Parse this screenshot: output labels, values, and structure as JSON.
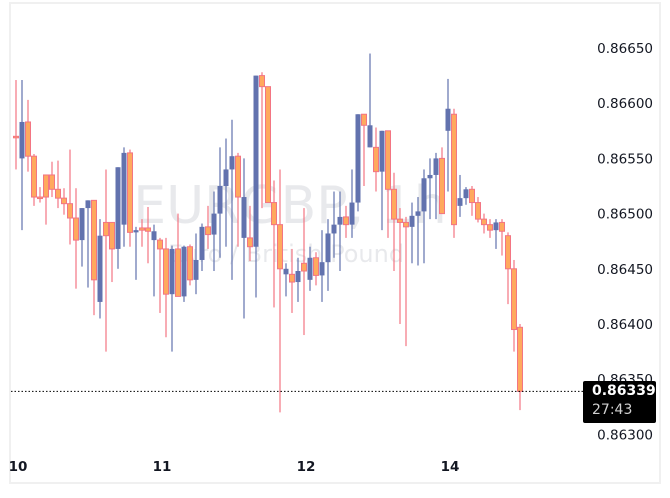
{
  "chart_data": {
    "type": "candlestick",
    "title": "EURGBP, 1h",
    "subtitle": "Euro / British Pound",
    "symbol": "EURGBP",
    "timeframe": "1h",
    "xlabel": "",
    "ylabel": "",
    "ylim": [
      0.86285,
      0.8669
    ],
    "grid": false,
    "y_ticks": [
      "0.86650",
      "0.86600",
      "0.86550",
      "0.86500",
      "0.86450",
      "0.86400",
      "0.86350",
      "0.86300"
    ],
    "x_ticks": [
      {
        "label": "10",
        "candle_index": 0
      },
      {
        "label": "11",
        "candle_index": 24
      },
      {
        "label": "12",
        "candle_index": 48
      },
      {
        "label": "14",
        "candle_index": 72
      }
    ],
    "last_price": "0.86339",
    "countdown": "27:43",
    "colors": {
      "up_body": "#6272ae",
      "up_wick": "#6272ae",
      "down_body": "#ffa95e",
      "down_border": "#f37583",
      "down_wick": "#f37583",
      "last_price_line": "#000000",
      "price_tag_bg": "#000000",
      "watermark": "#d9dbe0",
      "frame": "#f0f0f0"
    },
    "candles": [
      {
        "o": 0.8657,
        "h": 0.86621,
        "l": 0.8654,
        "c": 0.8657,
        "d": -1
      },
      {
        "o": 0.8655,
        "h": 0.86621,
        "l": 0.86485,
        "c": 0.86583,
        "d": 1
      },
      {
        "o": 0.86583,
        "h": 0.86603,
        "l": 0.86538,
        "c": 0.86552,
        "d": -1
      },
      {
        "o": 0.86552,
        "h": 0.86554,
        "l": 0.86507,
        "c": 0.86515,
        "d": -1
      },
      {
        "o": 0.86515,
        "h": 0.86524,
        "l": 0.8651,
        "c": 0.86515,
        "d": -1
      },
      {
        "o": 0.86515,
        "h": 0.8653,
        "l": 0.8649,
        "c": 0.86535,
        "d": -1
      },
      {
        "o": 0.86535,
        "h": 0.86547,
        "l": 0.86515,
        "c": 0.86522,
        "d": -1
      },
      {
        "o": 0.86522,
        "h": 0.86548,
        "l": 0.86505,
        "c": 0.86514,
        "d": -1
      },
      {
        "o": 0.86514,
        "h": 0.86523,
        "l": 0.86499,
        "c": 0.86509,
        "d": -1
      },
      {
        "o": 0.86509,
        "h": 0.86558,
        "l": 0.86472,
        "c": 0.86496,
        "d": -1
      },
      {
        "o": 0.86496,
        "h": 0.86523,
        "l": 0.86432,
        "c": 0.86476,
        "d": -1
      },
      {
        "o": 0.86476,
        "h": 0.86496,
        "l": 0.86452,
        "c": 0.86505,
        "d": 1
      },
      {
        "o": 0.86505,
        "h": 0.86512,
        "l": 0.86433,
        "c": 0.86512,
        "d": 1
      },
      {
        "o": 0.86512,
        "h": 0.86485,
        "l": 0.86408,
        "c": 0.8644,
        "d": -1
      },
      {
        "o": 0.8642,
        "h": 0.86495,
        "l": 0.86405,
        "c": 0.8648,
        "d": 1
      },
      {
        "o": 0.8648,
        "h": 0.8654,
        "l": 0.86375,
        "c": 0.86492,
        "d": -1
      },
      {
        "o": 0.86492,
        "h": 0.86492,
        "l": 0.86438,
        "c": 0.86468,
        "d": -1
      },
      {
        "o": 0.86468,
        "h": 0.86523,
        "l": 0.8645,
        "c": 0.86542,
        "d": 1
      },
      {
        "o": 0.8649,
        "h": 0.8656,
        "l": 0.8647,
        "c": 0.86555,
        "d": 1
      },
      {
        "o": 0.86555,
        "h": 0.86558,
        "l": 0.8647,
        "c": 0.86483,
        "d": -1
      },
      {
        "o": 0.86483,
        "h": 0.86488,
        "l": 0.8644,
        "c": 0.86485,
        "d": 1
      },
      {
        "o": 0.86485,
        "h": 0.86495,
        "l": 0.8647,
        "c": 0.86487,
        "d": -1
      },
      {
        "o": 0.86487,
        "h": 0.86506,
        "l": 0.86455,
        "c": 0.86484,
        "d": -1
      },
      {
        "o": 0.86484,
        "h": 0.8649,
        "l": 0.86425,
        "c": 0.86476,
        "d": 1
      },
      {
        "o": 0.86476,
        "h": 0.86478,
        "l": 0.8641,
        "c": 0.86468,
        "d": -1
      },
      {
        "o": 0.86468,
        "h": 0.86478,
        "l": 0.86388,
        "c": 0.86427,
        "d": -1
      },
      {
        "o": 0.86427,
        "h": 0.86471,
        "l": 0.86375,
        "c": 0.86468,
        "d": 1
      },
      {
        "o": 0.86468,
        "h": 0.865,
        "l": 0.8643,
        "c": 0.86425,
        "d": -1
      },
      {
        "o": 0.86425,
        "h": 0.86471,
        "l": 0.8642,
        "c": 0.8647,
        "d": 1
      },
      {
        "o": 0.8647,
        "h": 0.86472,
        "l": 0.86435,
        "c": 0.8644,
        "d": -1
      },
      {
        "o": 0.8644,
        "h": 0.86482,
        "l": 0.86427,
        "c": 0.86458,
        "d": 1
      },
      {
        "o": 0.86458,
        "h": 0.86491,
        "l": 0.86448,
        "c": 0.86488,
        "d": 1
      },
      {
        "o": 0.86488,
        "h": 0.86507,
        "l": 0.86468,
        "c": 0.86481,
        "d": -1
      },
      {
        "o": 0.86481,
        "h": 0.8652,
        "l": 0.86448,
        "c": 0.865,
        "d": 1
      },
      {
        "o": 0.865,
        "h": 0.8656,
        "l": 0.8646,
        "c": 0.86525,
        "d": 1
      },
      {
        "o": 0.86525,
        "h": 0.86568,
        "l": 0.8647,
        "c": 0.8654,
        "d": 1
      },
      {
        "o": 0.8654,
        "h": 0.86585,
        "l": 0.8644,
        "c": 0.86552,
        "d": 1
      },
      {
        "o": 0.86552,
        "h": 0.86555,
        "l": 0.8647,
        "c": 0.86515,
        "d": -1
      },
      {
        "o": 0.86515,
        "h": 0.8655,
        "l": 0.86405,
        "c": 0.86478,
        "d": 1
      },
      {
        "o": 0.86478,
        "h": 0.86507,
        "l": 0.86457,
        "c": 0.8647,
        "d": -1
      },
      {
        "o": 0.8647,
        "h": 0.86598,
        "l": 0.86424,
        "c": 0.86625,
        "d": 1
      },
      {
        "o": 0.86625,
        "h": 0.86628,
        "l": 0.86505,
        "c": 0.86615,
        "d": -1
      },
      {
        "o": 0.86615,
        "h": 0.86615,
        "l": 0.8651,
        "c": 0.8651,
        "d": -1
      },
      {
        "o": 0.8651,
        "h": 0.8653,
        "l": 0.86415,
        "c": 0.8649,
        "d": -1
      },
      {
        "o": 0.8649,
        "h": 0.8654,
        "l": 0.8632,
        "c": 0.8645,
        "d": -1
      },
      {
        "o": 0.8645,
        "h": 0.86455,
        "l": 0.86425,
        "c": 0.86445,
        "d": 1
      },
      {
        "o": 0.86445,
        "h": 0.86468,
        "l": 0.8641,
        "c": 0.86438,
        "d": -1
      },
      {
        "o": 0.86438,
        "h": 0.8646,
        "l": 0.8642,
        "c": 0.86448,
        "d": 1
      },
      {
        "o": 0.86448,
        "h": 0.86505,
        "l": 0.8639,
        "c": 0.86455,
        "d": -1
      },
      {
        "o": 0.8644,
        "h": 0.8647,
        "l": 0.8643,
        "c": 0.8646,
        "d": 1
      },
      {
        "o": 0.8646,
        "h": 0.86465,
        "l": 0.86435,
        "c": 0.86444,
        "d": -1
      },
      {
        "o": 0.86444,
        "h": 0.86485,
        "l": 0.8642,
        "c": 0.86456,
        "d": 1
      },
      {
        "o": 0.86456,
        "h": 0.86495,
        "l": 0.8643,
        "c": 0.86482,
        "d": 1
      },
      {
        "o": 0.86482,
        "h": 0.8652,
        "l": 0.8646,
        "c": 0.8649,
        "d": 1
      },
      {
        "o": 0.8649,
        "h": 0.8652,
        "l": 0.86448,
        "c": 0.86497,
        "d": 1
      },
      {
        "o": 0.86497,
        "h": 0.86507,
        "l": 0.86478,
        "c": 0.8649,
        "d": -1
      },
      {
        "o": 0.8649,
        "h": 0.8654,
        "l": 0.86478,
        "c": 0.8651,
        "d": 1
      },
      {
        "o": 0.8651,
        "h": 0.86568,
        "l": 0.86502,
        "c": 0.8659,
        "d": 1
      },
      {
        "o": 0.8659,
        "h": 0.8659,
        "l": 0.86525,
        "c": 0.8658,
        "d": -1
      },
      {
        "o": 0.8658,
        "h": 0.86645,
        "l": 0.86568,
        "c": 0.8656,
        "d": 1
      },
      {
        "o": 0.8656,
        "h": 0.86578,
        "l": 0.8652,
        "c": 0.86538,
        "d": -1
      },
      {
        "o": 0.86538,
        "h": 0.8656,
        "l": 0.86485,
        "c": 0.86575,
        "d": 1
      },
      {
        "o": 0.86575,
        "h": 0.86568,
        "l": 0.86478,
        "c": 0.86522,
        "d": -1
      },
      {
        "o": 0.86522,
        "h": 0.86537,
        "l": 0.86448,
        "c": 0.86495,
        "d": -1
      },
      {
        "o": 0.86495,
        "h": 0.86505,
        "l": 0.864,
        "c": 0.86492,
        "d": -1
      },
      {
        "o": 0.86492,
        "h": 0.86497,
        "l": 0.8638,
        "c": 0.86488,
        "d": -1
      },
      {
        "o": 0.86488,
        "h": 0.8651,
        "l": 0.86455,
        "c": 0.86498,
        "d": 1
      },
      {
        "o": 0.86498,
        "h": 0.86515,
        "l": 0.86453,
        "c": 0.86502,
        "d": 1
      },
      {
        "o": 0.86502,
        "h": 0.8654,
        "l": 0.86455,
        "c": 0.86532,
        "d": 1
      },
      {
        "o": 0.86532,
        "h": 0.8655,
        "l": 0.86495,
        "c": 0.86535,
        "d": 1
      },
      {
        "o": 0.86535,
        "h": 0.86555,
        "l": 0.86495,
        "c": 0.8655,
        "d": 1
      },
      {
        "o": 0.8655,
        "h": 0.8656,
        "l": 0.86502,
        "c": 0.865,
        "d": -1
      },
      {
        "o": 0.86575,
        "h": 0.86622,
        "l": 0.8652,
        "c": 0.86595,
        "d": 1
      },
      {
        "o": 0.8659,
        "h": 0.86595,
        "l": 0.86478,
        "c": 0.8649,
        "d": -1
      },
      {
        "o": 0.86507,
        "h": 0.86535,
        "l": 0.86497,
        "c": 0.86514,
        "d": 1
      },
      {
        "o": 0.86514,
        "h": 0.86524,
        "l": 0.86508,
        "c": 0.86522,
        "d": 1
      },
      {
        "o": 0.86522,
        "h": 0.86525,
        "l": 0.86498,
        "c": 0.8651,
        "d": -1
      },
      {
        "o": 0.8651,
        "h": 0.86515,
        "l": 0.86492,
        "c": 0.86495,
        "d": -1
      },
      {
        "o": 0.86495,
        "h": 0.865,
        "l": 0.86482,
        "c": 0.8649,
        "d": -1
      },
      {
        "o": 0.8649,
        "h": 0.86495,
        "l": 0.86478,
        "c": 0.86485,
        "d": -1
      },
      {
        "o": 0.86485,
        "h": 0.86495,
        "l": 0.86468,
        "c": 0.86492,
        "d": 1
      },
      {
        "o": 0.86492,
        "h": 0.86495,
        "l": 0.86462,
        "c": 0.86484,
        "d": -1
      },
      {
        "o": 0.8648,
        "h": 0.86483,
        "l": 0.86418,
        "c": 0.8645,
        "d": -1
      },
      {
        "o": 0.8645,
        "h": 0.86458,
        "l": 0.86375,
        "c": 0.86395,
        "d": -1
      },
      {
        "o": 0.86397,
        "h": 0.864,
        "l": 0.86322,
        "c": 0.86339,
        "d": -1
      }
    ]
  },
  "price_tag": {
    "price": "0.86339",
    "countdown": "27:43"
  },
  "watermark": {
    "symbol_line": "EURGBP, 1h",
    "name_line": "Euro / British Pound"
  }
}
